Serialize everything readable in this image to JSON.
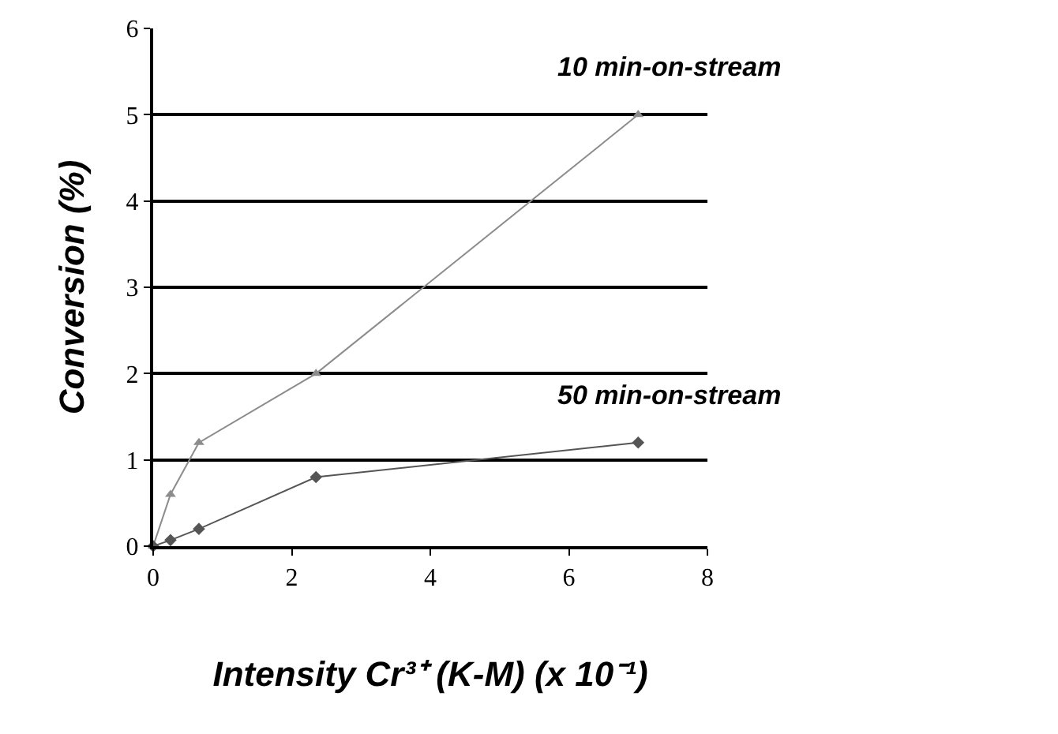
{
  "chart_data": {
    "type": "line",
    "xlabel": "Intensity Cr³⁺ (K-M) (x 10⁻¹)",
    "ylabel": "Conversion (%)",
    "xlim": [
      0,
      8
    ],
    "xticks": [
      0,
      2,
      4,
      6,
      8
    ],
    "ylim": [
      0,
      6
    ],
    "yticks": [
      0,
      1,
      2,
      3,
      4,
      5,
      6
    ],
    "grid": "y",
    "legend": false,
    "series": [
      {
        "name": "10 min-on-stream",
        "color": "#8c8c8c",
        "marker": "triangle",
        "x": [
          0,
          0.25,
          0.66,
          2.35,
          7
        ],
        "values": [
          0,
          0.6,
          1.2,
          2.0,
          5.0
        ]
      },
      {
        "name": "50 min-on-stream",
        "color": "#555555",
        "marker": "diamond",
        "x": [
          0,
          0.25,
          0.66,
          2.35,
          7
        ],
        "values": [
          0,
          0.07,
          0.2,
          0.8,
          1.2
        ]
      }
    ]
  }
}
